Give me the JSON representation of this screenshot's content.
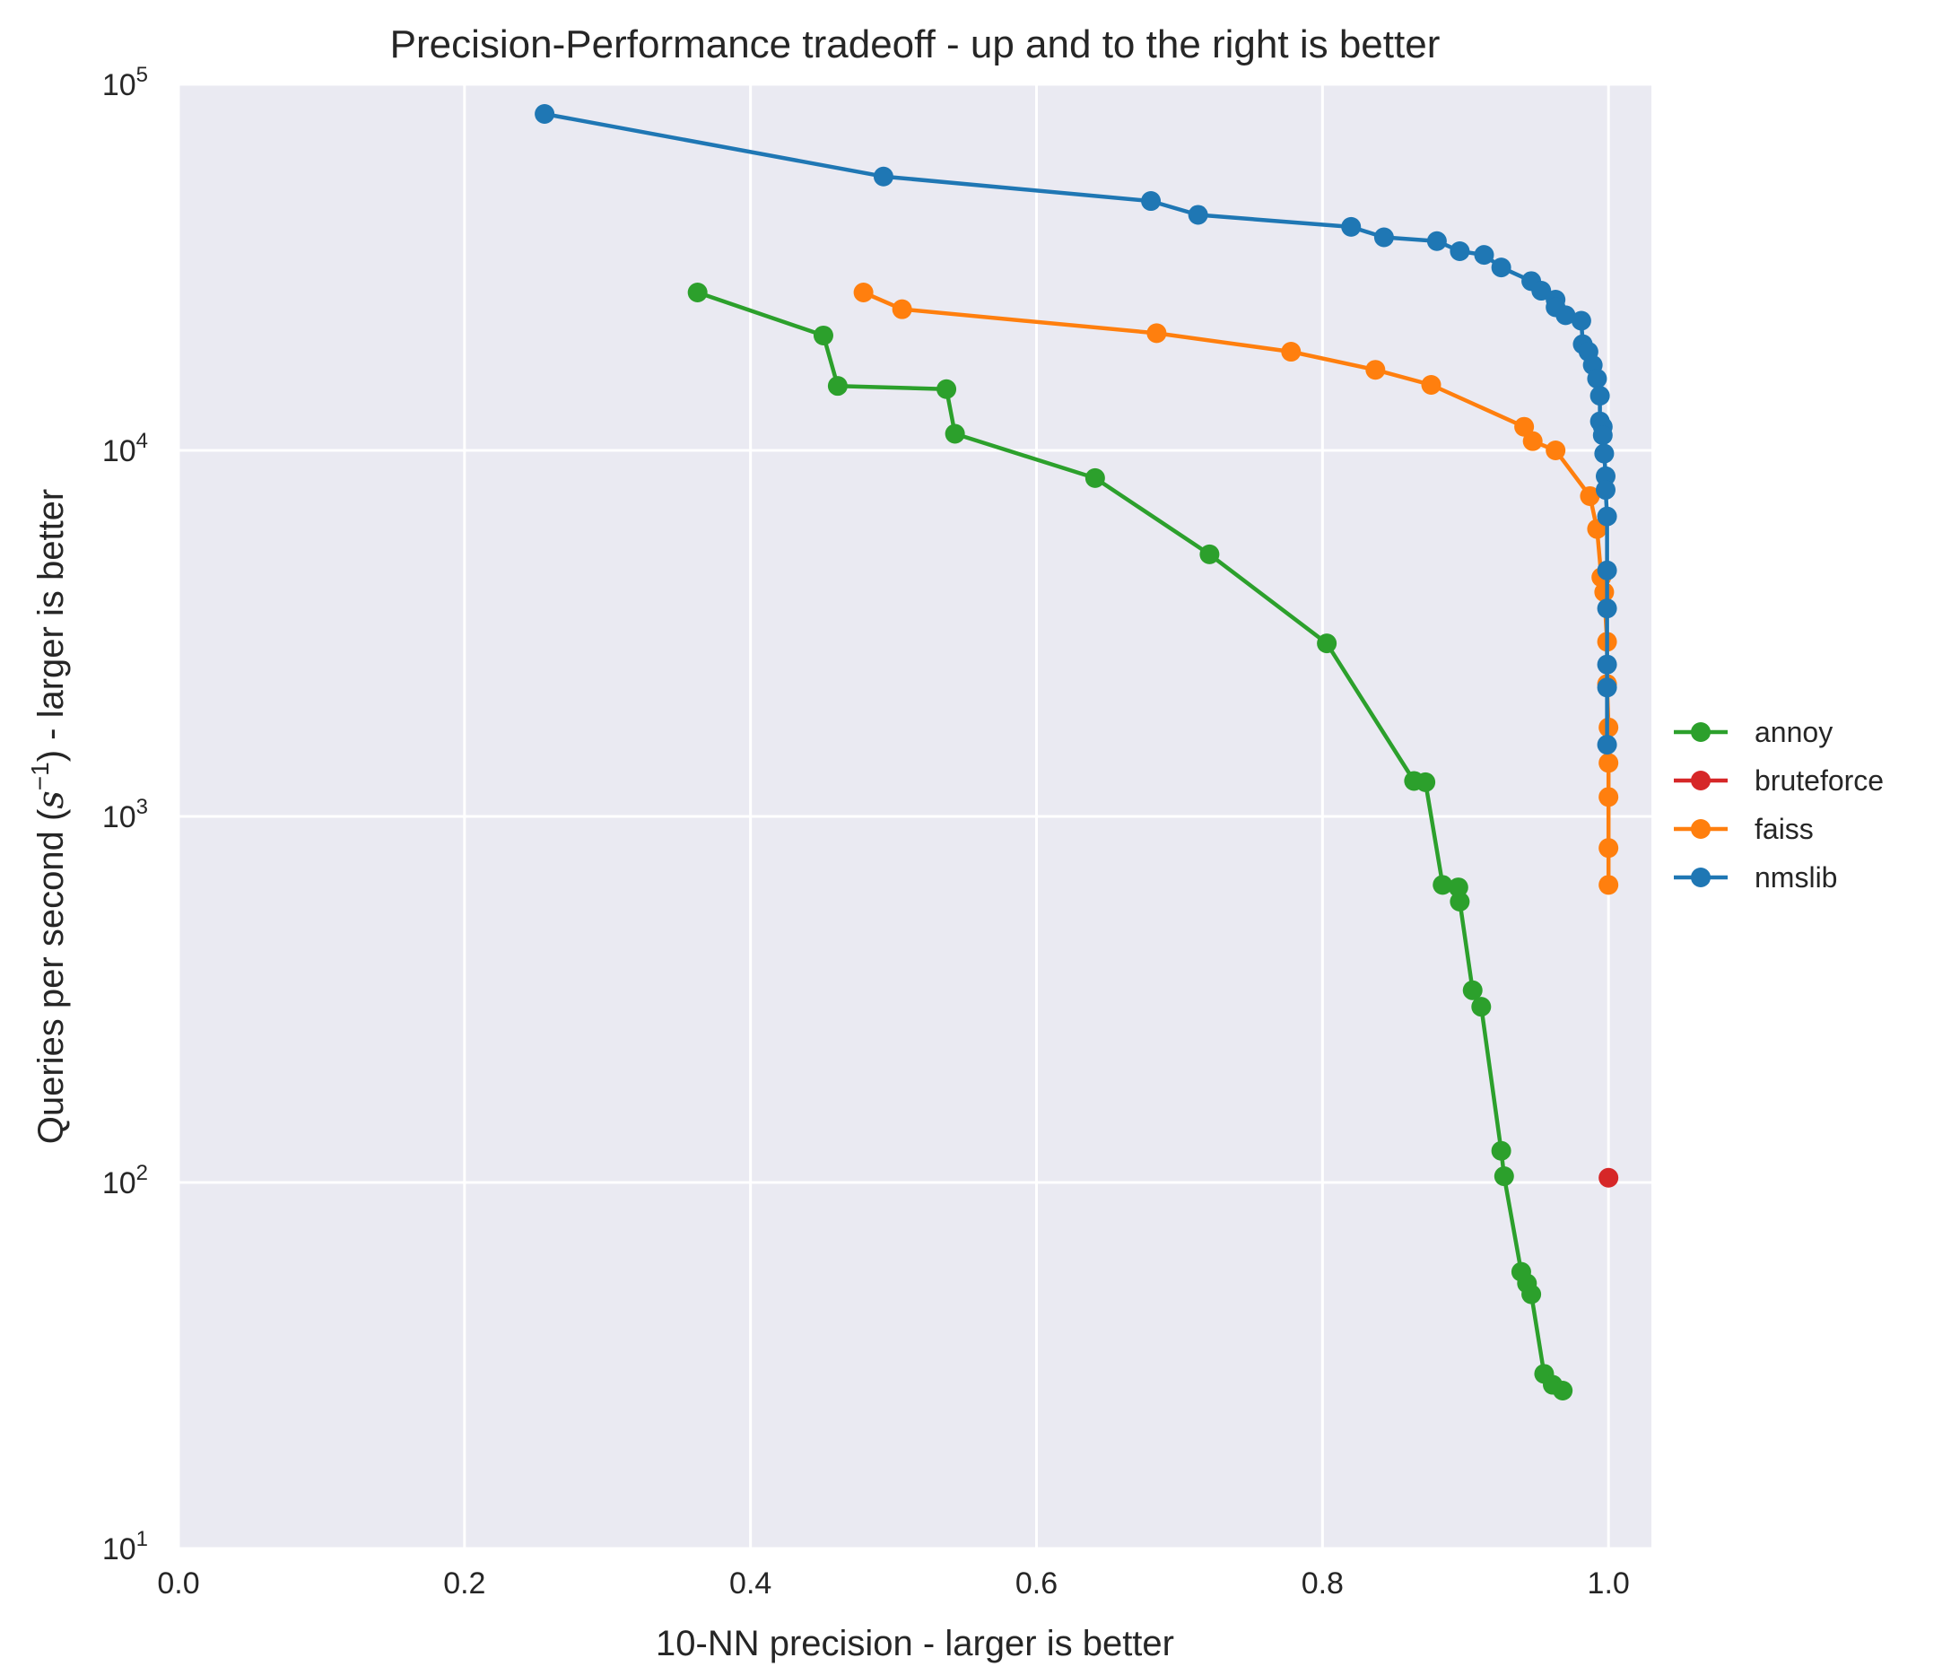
{
  "chart_data": {
    "type": "line",
    "title": "Precision-Performance tradeoff - up and to the right is better",
    "xlabel": "10-NN precision - larger is better",
    "ylabel_prefix": "Queries per second (",
    "ylabel_symbol": "s",
    "ylabel_exponent": "−1",
    "ylabel_suffix": ") - larger is better",
    "xlim": [
      0,
      1.03
    ],
    "ylim": [
      10,
      100000
    ],
    "yscale": "log",
    "grid": true,
    "background": "#eaeaf2",
    "legend_position": "right",
    "x_ticks": [
      {
        "value": 0.0,
        "label": "0.0"
      },
      {
        "value": 0.2,
        "label": "0.2"
      },
      {
        "value": 0.4,
        "label": "0.4"
      },
      {
        "value": 0.6,
        "label": "0.6"
      },
      {
        "value": 0.8,
        "label": "0.8"
      },
      {
        "value": 1.0,
        "label": "1.0"
      }
    ],
    "y_ticks": [
      {
        "value": 10,
        "base": "10",
        "exp": "1"
      },
      {
        "value": 100,
        "base": "10",
        "exp": "2"
      },
      {
        "value": 1000,
        "base": "10",
        "exp": "3"
      },
      {
        "value": 10000,
        "base": "10",
        "exp": "4"
      },
      {
        "value": 100000,
        "base": "10",
        "exp": "5"
      }
    ],
    "series": [
      {
        "name": "annoy",
        "color": "#2ca02c",
        "points": [
          [
            0.363,
            27000
          ],
          [
            0.451,
            20600
          ],
          [
            0.461,
            15000
          ],
          [
            0.537,
            14700
          ],
          [
            0.543,
            11100
          ],
          [
            0.641,
            8400
          ],
          [
            0.721,
            5200
          ],
          [
            0.803,
            2970
          ],
          [
            0.864,
            1250
          ],
          [
            0.872,
            1240
          ],
          [
            0.884,
            650
          ],
          [
            0.895,
            640
          ],
          [
            0.896,
            585
          ],
          [
            0.905,
            335
          ],
          [
            0.911,
            302
          ],
          [
            0.925,
            122
          ],
          [
            0.927,
            104
          ],
          [
            0.939,
            57
          ],
          [
            0.943,
            53
          ],
          [
            0.946,
            49.5
          ],
          [
            0.955,
            30
          ],
          [
            0.961,
            28
          ],
          [
            0.968,
            27
          ]
        ]
      },
      {
        "name": "bruteforce",
        "color": "#d62728",
        "points": [
          [
            1.0,
            103
          ]
        ]
      },
      {
        "name": "faiss",
        "color": "#ff7f0e",
        "points": [
          [
            0.479,
            27000
          ],
          [
            0.506,
            24300
          ],
          [
            0.684,
            20900
          ],
          [
            0.778,
            18600
          ],
          [
            0.837,
            16600
          ],
          [
            0.876,
            15100
          ],
          [
            0.941,
            11600
          ],
          [
            0.947,
            10600
          ],
          [
            0.963,
            10000
          ],
          [
            0.987,
            7500
          ],
          [
            0.992,
            6100
          ],
          [
            0.995,
            4500
          ],
          [
            0.997,
            4100
          ],
          [
            0.999,
            3000
          ],
          [
            0.999,
            2300
          ],
          [
            1.0,
            1750
          ],
          [
            1.0,
            1400
          ],
          [
            1.0,
            1130
          ],
          [
            1.0,
            820
          ],
          [
            1.0,
            650
          ]
        ]
      },
      {
        "name": "nmslib",
        "color": "#1f77b4",
        "points": [
          [
            0.256,
            83000
          ],
          [
            0.493,
            56000
          ],
          [
            0.68,
            48000
          ],
          [
            0.713,
            44000
          ],
          [
            0.82,
            40800
          ],
          [
            0.843,
            38200
          ],
          [
            0.88,
            37300
          ],
          [
            0.896,
            35000
          ],
          [
            0.913,
            34200
          ],
          [
            0.925,
            31600
          ],
          [
            0.946,
            29000
          ],
          [
            0.953,
            27300
          ],
          [
            0.963,
            25800
          ],
          [
            0.963,
            24600
          ],
          [
            0.97,
            23400
          ],
          [
            0.981,
            22600
          ],
          [
            0.982,
            19500
          ],
          [
            0.986,
            18600
          ],
          [
            0.989,
            17100
          ],
          [
            0.992,
            15700
          ],
          [
            0.994,
            14100
          ],
          [
            0.994,
            12000
          ],
          [
            0.996,
            11600
          ],
          [
            0.996,
            11000
          ],
          [
            0.997,
            9800
          ],
          [
            0.998,
            8500
          ],
          [
            0.998,
            7800
          ],
          [
            0.999,
            6600
          ],
          [
            0.999,
            4700
          ],
          [
            0.999,
            3700
          ],
          [
            0.999,
            2600
          ],
          [
            0.999,
            2250
          ],
          [
            0.999,
            1570
          ]
        ]
      }
    ]
  }
}
